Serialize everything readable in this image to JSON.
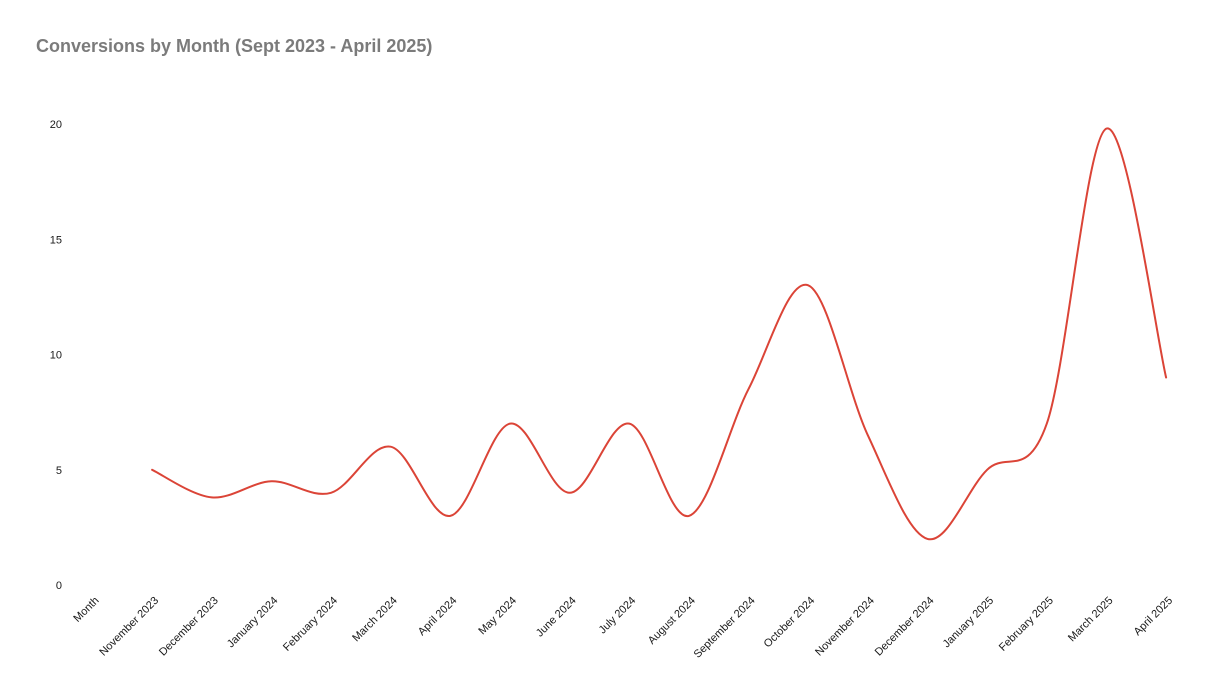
{
  "title": "Conversions by Month (Sept 2023 - April 2025)",
  "chart_data": {
    "type": "line",
    "title": "Conversions by Month (Sept 2023 - April 2025)",
    "categories": [
      "Month",
      "November 2023",
      "December 2023",
      "January 2024",
      "February 2024",
      "March 2024",
      "April 2024",
      "May 2024",
      "June 2024",
      "July 2024",
      "August 2024",
      "September 2024",
      "October 2024",
      "November 2024",
      "December 2024",
      "January 2025",
      "February 2025",
      "March 2025",
      "April 2025"
    ],
    "values": [
      null,
      5,
      3.8,
      4.5,
      4,
      6,
      3,
      7,
      4,
      7,
      3,
      8.5,
      13,
      6.5,
      2,
      5,
      7,
      19.8,
      9
    ],
    "series_name": "Conversions",
    "xlabel": "",
    "ylabel": "",
    "ylim": [
      0,
      20
    ],
    "yticks": [
      0,
      5,
      10,
      15,
      20
    ],
    "x_tick_rotation": 45,
    "grid": false,
    "legend": false,
    "smooth": true,
    "line_color": "#DB4437"
  },
  "colors": {
    "background": "#FFFFFF",
    "title_text": "#7B7B7B",
    "axis_text": "#1A1A1A",
    "line": "#DB4437"
  }
}
